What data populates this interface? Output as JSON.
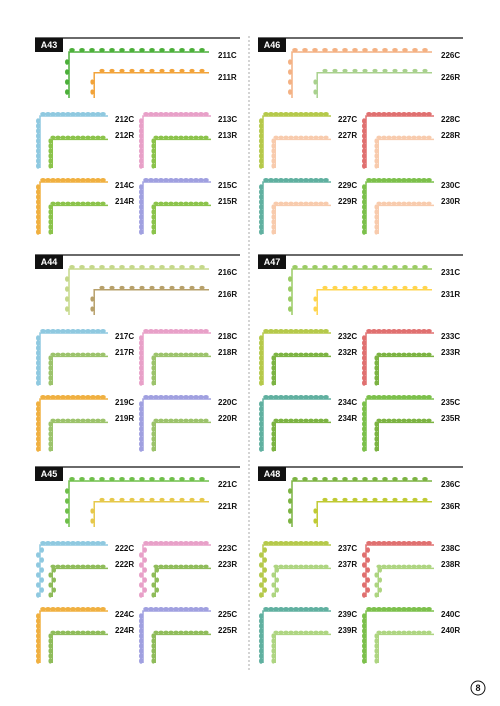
{
  "sections": [
    {
      "label": "A43",
      "items": [
        [
          "211C",
          "211R"
        ],
        [
          "212C",
          "212R"
        ],
        [
          "213C",
          "213R"
        ],
        [
          "214C",
          "214R"
        ],
        [
          "215C",
          "215R"
        ]
      ]
    },
    {
      "label": "A46",
      "items": [
        [
          "226C",
          "226R"
        ],
        [
          "227C",
          "227R"
        ],
        [
          "228C",
          "228R"
        ],
        [
          "229C",
          "229R"
        ],
        [
          "230C",
          "230R"
        ]
      ]
    },
    {
      "label": "A44",
      "items": [
        [
          "216C",
          "216R"
        ],
        [
          "217C",
          "217R"
        ],
        [
          "218C",
          "218R"
        ],
        [
          "219C",
          "219R"
        ],
        [
          "220C",
          "220R"
        ]
      ]
    },
    {
      "label": "A47",
      "items": [
        [
          "231C",
          "231R"
        ],
        [
          "232C",
          "232R"
        ],
        [
          "233C",
          "233R"
        ],
        [
          "234C",
          "234R"
        ],
        [
          "235C",
          "235R"
        ]
      ]
    },
    {
      "label": "A45",
      "items": [
        [
          "221C",
          "221R"
        ],
        [
          "222C",
          "222R"
        ],
        [
          "223C",
          "223R"
        ],
        [
          "224C",
          "224R"
        ],
        [
          "225C",
          "225R"
        ]
      ]
    },
    {
      "label": "A48",
      "items": [
        [
          "236C",
          "236R"
        ],
        [
          "237C",
          "237R"
        ],
        [
          "238C",
          "238R"
        ],
        [
          "239C",
          "239R"
        ],
        [
          "240C",
          "240R"
        ]
      ]
    }
  ],
  "page_number": "8"
}
